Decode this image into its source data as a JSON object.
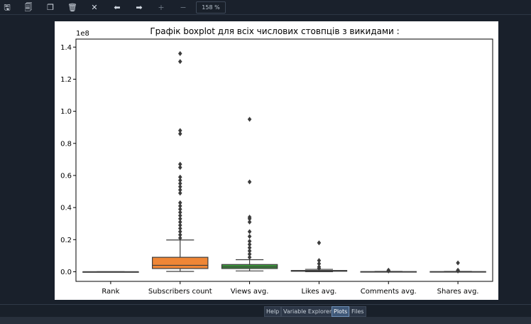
{
  "toolbar": {
    "buttons": [
      {
        "name": "save-icon",
        "glyph": "🖫"
      },
      {
        "name": "save-all-icon",
        "glyph": "🗐"
      },
      {
        "name": "copy-icon",
        "glyph": "❐"
      },
      {
        "name": "delete-icon",
        "glyph": "🗑"
      },
      {
        "name": "close-all-icon",
        "glyph": "✕"
      },
      {
        "name": "previous-icon",
        "glyph": "⬅"
      },
      {
        "name": "next-icon",
        "glyph": "➡"
      },
      {
        "name": "zoom-in-icon",
        "glyph": "+"
      },
      {
        "name": "zoom-out-icon",
        "glyph": "−"
      }
    ],
    "zoom": "158 %"
  },
  "tabs": [
    {
      "label": "Help",
      "active": false
    },
    {
      "label": "Variable Explorer",
      "active": false
    },
    {
      "label": "Plots",
      "active": true
    },
    {
      "label": "Files",
      "active": false
    }
  ],
  "chart_data": {
    "type": "boxplot",
    "title": "Графік boxplot для всіх числових стовпців з викидами :",
    "xlabel": "",
    "ylabel": "",
    "y_scale_label": "1e8",
    "ylim": [
      -0.06,
      1.45
    ],
    "yticks": [
      "0.0",
      "0.2",
      "0.4",
      "0.6",
      "0.8",
      "1.0",
      "1.2",
      "1.4"
    ],
    "grid": false,
    "categories": [
      "Rank",
      "Subscribers count",
      "Views avg.",
      "Likes avg.",
      "Comments avg.",
      "Shares avg."
    ],
    "colors": [
      "#3b75af",
      "#ef8636",
      "#3a923a",
      "#c03d3e",
      "#9372b2",
      "#845b53"
    ],
    "boxes": [
      {
        "q1": 0.0,
        "median": 0.0,
        "q3": 0.0,
        "whisker_low": 0.0,
        "whisker_high": 0.0,
        "outliers": []
      },
      {
        "q1": 0.02,
        "median": 0.04,
        "q3": 0.09,
        "whisker_low": 0.002,
        "whisker_high": 0.198,
        "outliers": [
          1.36,
          1.31,
          0.88,
          0.86,
          0.67,
          0.65,
          0.59,
          0.57,
          0.55,
          0.53,
          0.51,
          0.49,
          0.43,
          0.41,
          0.39,
          0.37,
          0.35,
          0.33,
          0.31,
          0.29,
          0.27,
          0.25,
          0.23,
          0.21
        ]
      },
      {
        "q1": 0.02,
        "median": 0.03,
        "q3": 0.045,
        "whisker_low": 0.005,
        "whisker_high": 0.075,
        "outliers": [
          0.95,
          0.56,
          0.34,
          0.33,
          0.31,
          0.25,
          0.22,
          0.19,
          0.17,
          0.15,
          0.13,
          0.11,
          0.09
        ]
      },
      {
        "q1": 0.003,
        "median": 0.005,
        "q3": 0.008,
        "whisker_low": 0.0,
        "whisker_high": 0.015,
        "outliers": [
          0.18,
          0.07,
          0.05,
          0.03,
          0.02
        ]
      },
      {
        "q1": 0.0,
        "median": 0.0,
        "q3": 0.001,
        "whisker_low": 0.0,
        "whisker_high": 0.002,
        "outliers": [
          0.01,
          0.005
        ]
      },
      {
        "q1": 0.0,
        "median": 0.0,
        "q3": 0.001,
        "whisker_low": 0.0,
        "whisker_high": 0.002,
        "outliers": [
          0.055,
          0.01,
          0.005
        ]
      }
    ]
  }
}
